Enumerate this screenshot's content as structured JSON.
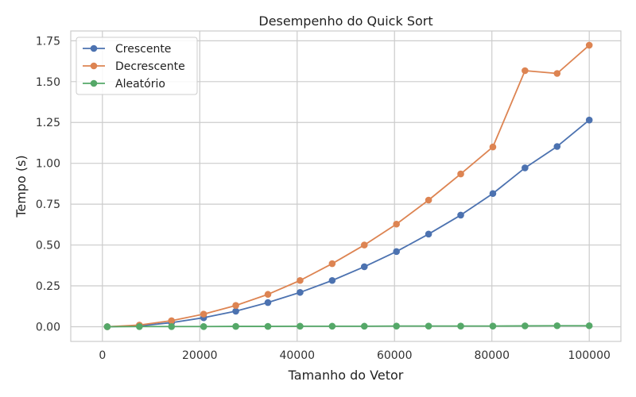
{
  "chart_data": {
    "type": "line",
    "title": "Desempenho do Quick Sort",
    "xlabel": "Tamanho do Vetor",
    "ylabel": "Tempo (s)",
    "xlim": [
      -6500,
      106500
    ],
    "ylim": [
      -0.09,
      1.81
    ],
    "xticks": [
      0,
      20000,
      40000,
      60000,
      80000,
      100000
    ],
    "xtick_labels": [
      "0",
      "20000",
      "40000",
      "60000",
      "80000",
      "100000"
    ],
    "yticks": [
      0,
      0.25,
      0.5,
      0.75,
      1.0,
      1.25,
      1.5,
      1.75
    ],
    "ytick_labels": [
      "0.00",
      "0.25",
      "0.50",
      "0.75",
      "1.00",
      "1.25",
      "1.50",
      "1.75"
    ],
    "grid": true,
    "legend_position": "top-left",
    "x": [
      1000,
      7600,
      14200,
      20800,
      27400,
      34000,
      40600,
      47200,
      53800,
      60400,
      67000,
      73600,
      80200,
      86800,
      93400,
      100000
    ],
    "series": [
      {
        "name": "Crescente",
        "color": "#4c72b0",
        "values": [
          0.0,
          0.005,
          0.025,
          0.055,
          0.095,
          0.148,
          0.21,
          0.283,
          0.367,
          0.46,
          0.567,
          0.683,
          0.815,
          0.972,
          1.103,
          1.265
        ]
      },
      {
        "name": "Decrescente",
        "color": "#dd8452",
        "values": [
          0.0,
          0.01,
          0.037,
          0.077,
          0.13,
          0.198,
          0.283,
          0.386,
          0.5,
          0.628,
          0.775,
          0.935,
          1.1,
          1.567,
          1.55,
          1.723
        ]
      },
      {
        "name": "Aleatório",
        "color": "#55a868",
        "values": [
          0.0,
          0.001,
          0.001,
          0.001,
          0.002,
          0.002,
          0.003,
          0.003,
          0.003,
          0.004,
          0.004,
          0.004,
          0.004,
          0.005,
          0.006,
          0.006
        ]
      }
    ]
  }
}
